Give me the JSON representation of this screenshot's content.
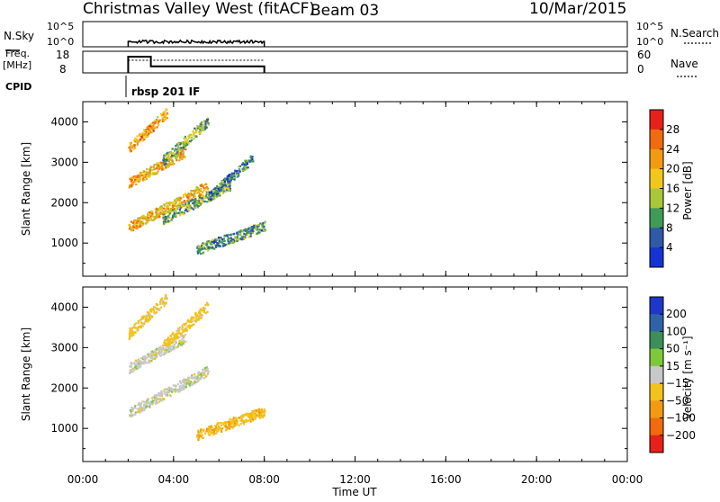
{
  "header": {
    "title": "Christmas Valley West (fitACF)",
    "beam": "Beam 03",
    "date": "10/Mar/2015"
  },
  "nsky_panel": {
    "left_label": "N.Sky",
    "right_label": "N.Search",
    "left_ticks": [
      "10^5",
      "10^0"
    ],
    "right_ticks": [
      "10^5",
      "10^0"
    ]
  },
  "freq_panel": {
    "left_label_1": "Freq.",
    "left_label_2": "[MHz]",
    "right_label": "Nave",
    "left_ticks": [
      "18",
      "8"
    ],
    "right_ticks": [
      "60",
      "0"
    ]
  },
  "cpid": {
    "label": "CPID",
    "program": "rbsp 201 IF"
  },
  "power_panel": {
    "ylabel": "Slant Range [km]",
    "cbar_label": "Power [dB]",
    "cbar_ticks": [
      "28",
      "24",
      "20",
      "16",
      "12",
      "8",
      "4"
    ],
    "cbar_colors": [
      "#e8201a",
      "#f06a0e",
      "#f29a12",
      "#f2c71c",
      "#a8c83a",
      "#3f9b57",
      "#2e5aa8",
      "#1533d4"
    ]
  },
  "velocity_panel": {
    "ylabel": "Slant Range [km]",
    "cbar_label": "Velocity [m s⁻¹]",
    "cbar_ticks": [
      "200",
      "100",
      "50",
      "15",
      "−15",
      "−50",
      "−100",
      "−200"
    ],
    "cbar_colors": [
      "#1f37c8",
      "#2e63a8",
      "#3c8f5a",
      "#7ec93a",
      "#c8c8c8",
      "#f3c21c",
      "#f29a12",
      "#f06a0e",
      "#e8201a"
    ]
  },
  "xaxis": {
    "label": "Time UT",
    "ticks": [
      "00:00",
      "04:00",
      "08:00",
      "12:00",
      "16:00",
      "20:00",
      "00:00"
    ]
  },
  "chart_data": [
    {
      "type": "line",
      "name": "N.Sky",
      "x_hours": [
        2.0,
        8.0
      ],
      "ylim_log10": [
        0,
        5
      ],
      "approx_log10_level": 1.0
    },
    {
      "type": "line",
      "name": "Freq",
      "series": [
        {
          "name": "Freq",
          "x": [
            2.0,
            2.5,
            3.0,
            8.0
          ],
          "values": [
            15.5,
            15.5,
            11.0,
            10.2
          ]
        },
        {
          "name": "Nave",
          "x": [
            2.0,
            8.0
          ],
          "values": [
            35,
            35
          ]
        }
      ],
      "ylim_left": [
        8,
        18
      ],
      "ylim_right": [
        0,
        60
      ]
    },
    {
      "type": "heatmap",
      "variable": "Power",
      "unit": "dB",
      "xlim_hours": [
        0,
        24
      ],
      "ylim_km": [
        180,
        4500
      ],
      "yticks": [
        1000,
        2000,
        3000,
        4000
      ],
      "data_extent_hours": [
        2.0,
        8.0
      ],
      "bands": [
        {
          "t0": 2.0,
          "t1": 5.5,
          "r0": 1350,
          "r1": 2500,
          "power": 20
        },
        {
          "t0": 2.0,
          "t1": 4.5,
          "r0": 2450,
          "r1": 3300,
          "power": 20
        },
        {
          "t0": 2.0,
          "t1": 3.7,
          "r0": 3300,
          "r1": 4300,
          "power": 22
        },
        {
          "t0": 3.5,
          "t1": 6.5,
          "r0": 1550,
          "r1": 2500,
          "power": 12
        },
        {
          "t0": 3.5,
          "t1": 5.5,
          "r0": 3000,
          "r1": 4100,
          "power": 12
        },
        {
          "t0": 5.0,
          "t1": 8.0,
          "r0": 800,
          "r1": 1450,
          "power": 10
        },
        {
          "t0": 5.5,
          "t1": 7.5,
          "r0": 2100,
          "r1": 3200,
          "power": 8
        }
      ]
    },
    {
      "type": "heatmap",
      "variable": "Velocity",
      "unit": "m s-1",
      "xlim_hours": [
        0,
        24
      ],
      "ylim_km": [
        180,
        4500
      ],
      "yticks": [
        1000,
        2000,
        3000,
        4000
      ],
      "data_extent_hours": [
        2.0,
        8.0
      ],
      "bands": [
        {
          "t0": 2.0,
          "t1": 5.5,
          "r0": 1350,
          "r1": 2500,
          "velocity": 0
        },
        {
          "t0": 2.0,
          "t1": 4.5,
          "r0": 2450,
          "r1": 3300,
          "velocity": 0
        },
        {
          "t0": 2.0,
          "t1": 3.7,
          "r0": 3300,
          "r1": 4300,
          "velocity": -30
        },
        {
          "t0": 3.5,
          "t1": 5.5,
          "r0": 3000,
          "r1": 4100,
          "velocity": -30
        },
        {
          "t0": 5.0,
          "t1": 8.0,
          "r0": 800,
          "r1": 1450,
          "velocity": -40
        }
      ]
    }
  ]
}
